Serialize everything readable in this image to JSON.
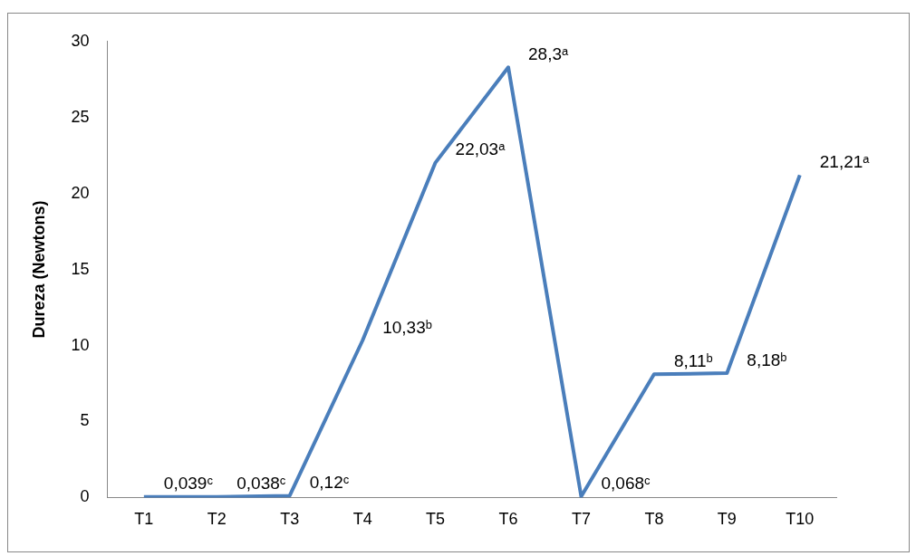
{
  "chart_data": {
    "type": "line",
    "ylabel": "Dureza (Newtons)",
    "categories": [
      "T1",
      "T2",
      "T3",
      "T4",
      "T5",
      "T6",
      "T7",
      "T8",
      "T9",
      "T10"
    ],
    "series": [
      {
        "color": "#4a7ebb",
        "values": [
          0.039,
          0.038,
          0.12,
          10.33,
          22.03,
          28.3,
          0.068,
          8.11,
          8.18,
          21.21
        ],
        "value_labels": [
          "0,039ᶜ",
          "0,038ᶜ",
          "0,12ᶜ",
          "10,33ᵇ",
          "22,03ᵃ",
          "28,3ᵃ",
          "0,068ᶜ",
          "8,11ᵇ",
          "8,18ᵇ",
          "21,21ᵃ"
        ]
      }
    ],
    "ylim": [
      0,
      30
    ],
    "yticks": [
      0,
      5,
      10,
      15,
      20,
      25,
      30
    ],
    "grid": false,
    "legend": false,
    "marker": "none",
    "line_style": "solid"
  }
}
